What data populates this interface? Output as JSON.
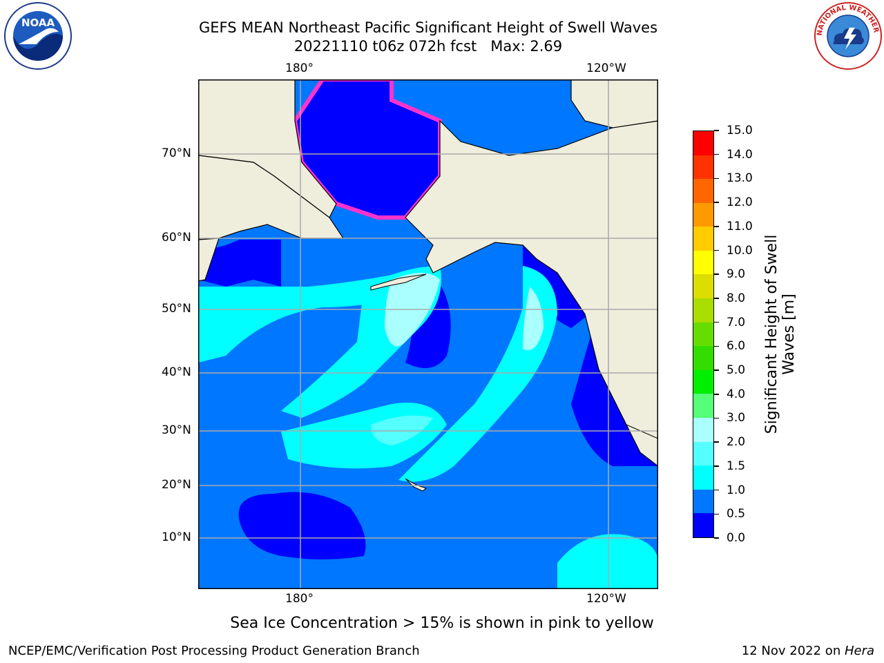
{
  "title": {
    "line1": "GEFS MEAN Northeast Pacific Significant Height of Swell Waves",
    "line2": "20221110 t06z 072h fcst   Max: 2.69"
  },
  "logos": {
    "left": "NOAA",
    "right": "NATIONAL WEATHER SERVICE"
  },
  "map": {
    "lon_labels": [
      "180°",
      "120°W"
    ],
    "lat_labels": [
      "70°N",
      "60°N",
      "50°N",
      "40°N",
      "30°N",
      "20°N",
      "10°N"
    ],
    "colors": {
      "land": "#efeddc",
      "ocean_low": "#0000ff",
      "ocean_mid": "#0077ff",
      "ocean_high": "#00ffff",
      "ocean_highest": "#aaffff",
      "ice": "#ff33cc",
      "grid": "#aaaaaa"
    }
  },
  "colorbar": {
    "title": "Significant Height of Swell Waves [m]",
    "title_line1": "Significant Height of Swell",
    "title_line2": "Waves [m]",
    "tick_labels": [
      "0.0",
      "0.5",
      "1.0",
      "1.5",
      "2.0",
      "3.0",
      "4.0",
      "5.0",
      "6.0",
      "7.0",
      "8.0",
      "9.0",
      "10.0",
      "11.0",
      "12.0",
      "13.0",
      "14.0",
      "15.0"
    ],
    "colors": [
      "#0000ff",
      "#0077ff",
      "#00ffff",
      "#55ffff",
      "#aaffff",
      "#55ff77",
      "#00ee00",
      "#33dd00",
      "#66dd00",
      "#aadd00",
      "#dddd00",
      "#ffff00",
      "#ffcc00",
      "#ff9900",
      "#ff6600",
      "#ff3300",
      "#ff0000"
    ]
  },
  "caption": "Sea Ice Concentration > 15% is shown in pink to yellow",
  "footer": {
    "left": "NCEP/EMC/Verification Post Processing Product Generation Branch",
    "right_date": "12 Nov 2022 on ",
    "right_host": "Hera"
  }
}
